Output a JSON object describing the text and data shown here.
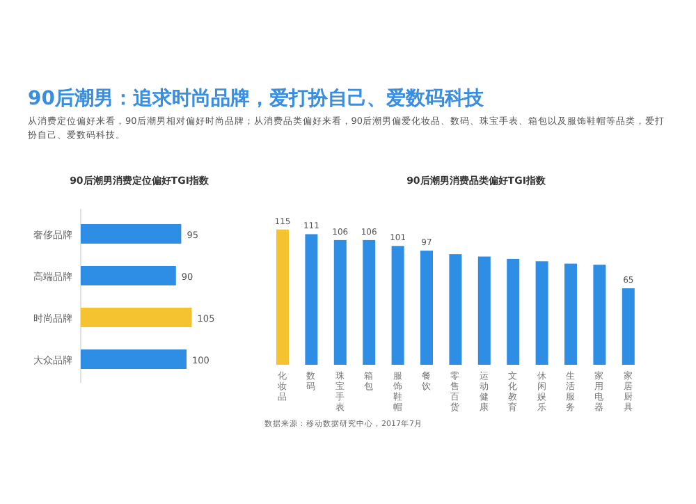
{
  "chart_data": [
    {
      "type": "bar",
      "orientation": "horizontal",
      "title": "90后潮男消费定位偏好TGI指数",
      "annotations": [
        "90后潮男：追求时尚品牌，爱打扮自己、爱数码科技",
        "从消费定位偏好来看，90后潮男相对偏好时尚品牌；从消费品类偏好来看，90后潮男偏爱化妆品、数码、珠宝手表、箱包以及服饰鞋帽等品类，爱打扮自己、爱数码科技。"
      ],
      "categories": [
        "奢侈品牌",
        "高端品牌",
        "时尚品牌",
        "大众品牌"
      ],
      "values": [
        95,
        90,
        105,
        100
      ],
      "colors": [
        "#2e8ee6",
        "#2e8ee6",
        "#f5c330",
        "#2e8ee6"
      ],
      "data_labels": true
    },
    {
      "type": "bar",
      "title": "90后潮男消费品类偏好TGI指数",
      "annotations": [
        "数据来源：移动数据研究中心，2017年7月"
      ],
      "categories": [
        "化妆品",
        "数码",
        "珠宝手表",
        "箱包",
        "服饰鞋帽",
        "餐饮",
        "零售百货",
        "运动健康",
        "文化教育",
        "休闲娱乐",
        "生活服务",
        "家用电器",
        "家居厨具"
      ],
      "values": [
        115,
        111,
        106,
        106,
        101,
        97,
        94,
        92,
        90,
        88,
        86,
        85,
        65
      ],
      "colors": [
        "#f5c330",
        "#2e8ee6",
        "#2e8ee6",
        "#2e8ee6",
        "#2e8ee6",
        "#2e8ee6",
        "#2e8ee6",
        "#2e8ee6",
        "#2e8ee6",
        "#2e8ee6",
        "#2e8ee6",
        "#2e8ee6",
        "#2e8ee6"
      ],
      "value_labels": [
        "115",
        "111",
        "106",
        "106",
        "101",
        "97",
        null,
        null,
        null,
        null,
        null,
        null,
        "65"
      ]
    }
  ]
}
